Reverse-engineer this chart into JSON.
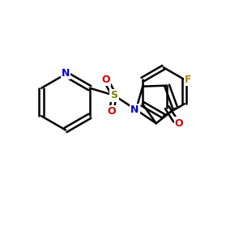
{
  "figsize": [
    3.0,
    3.0
  ],
  "dpi": 100,
  "background": "#ffffff",
  "colors": {
    "bond": "#000000",
    "N": "#0000cc",
    "O": "#cc0000",
    "F": "#b8860b",
    "S": "#808000"
  },
  "lw": 1.8,
  "lw2": 3.6
}
